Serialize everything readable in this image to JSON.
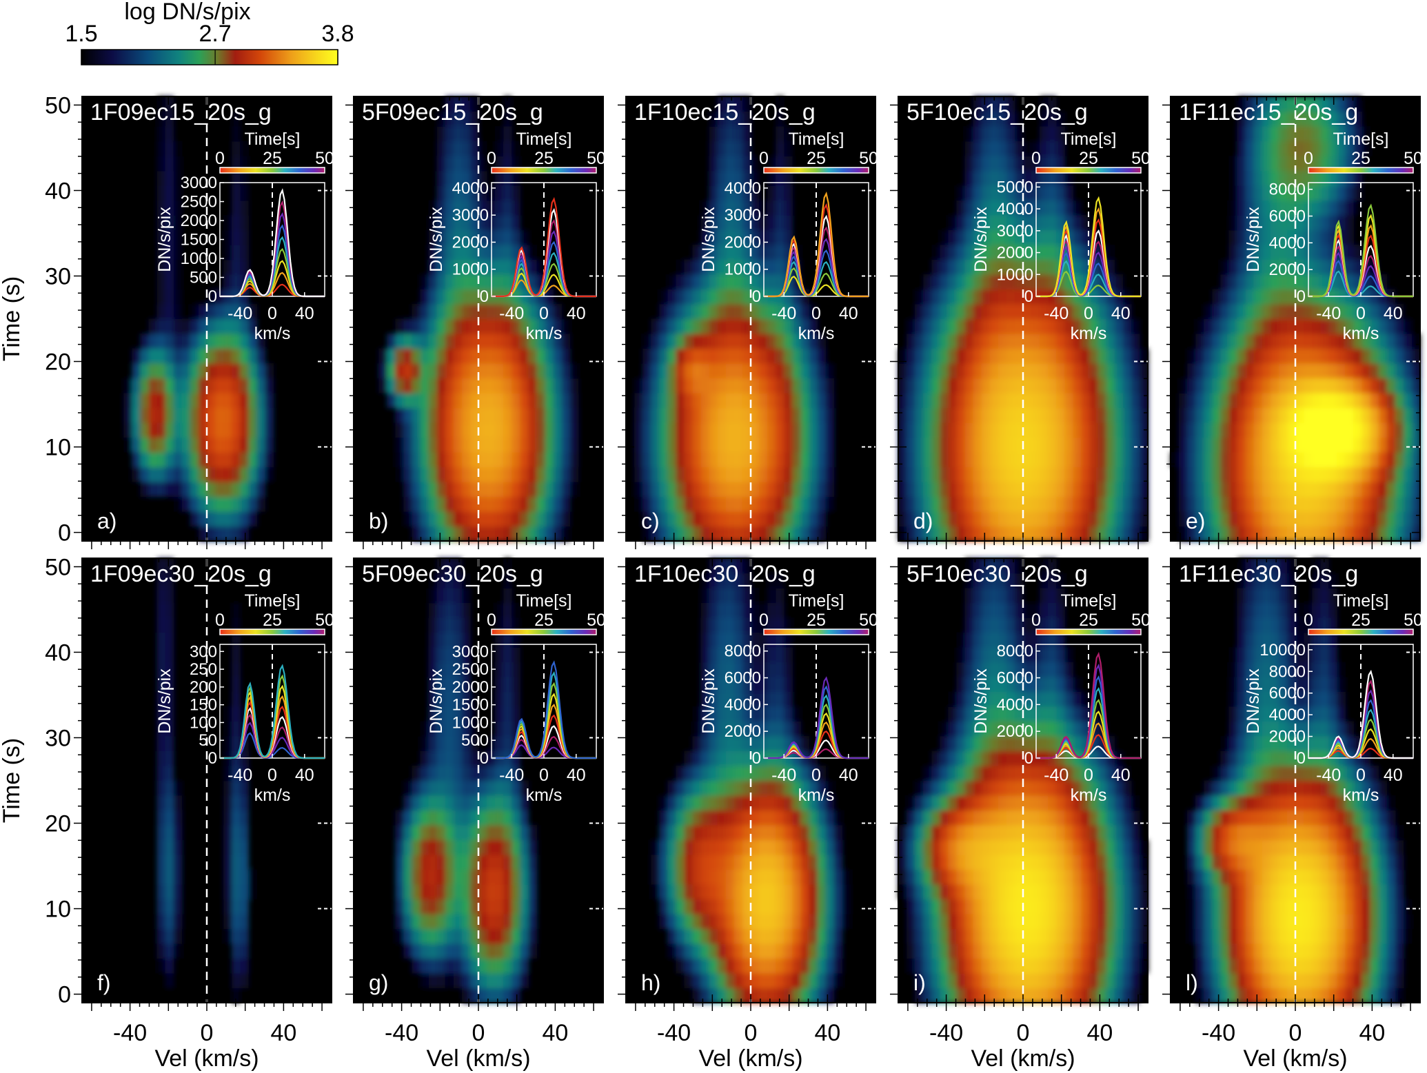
{
  "colorbar": {
    "title": "log DN/s/pix",
    "tick_labels": [
      "1.5",
      "2.7",
      "3.8"
    ],
    "tick_values": [
      1.5,
      2.7,
      3.8
    ],
    "range": [
      1.5,
      3.8
    ]
  },
  "axes_common": {
    "xlabel": "Vel (km/s)",
    "ylabel": "Time (s)",
    "xticks": [
      -40,
      0,
      40
    ],
    "yticks": [
      0,
      10,
      20,
      30,
      40,
      50
    ],
    "xlim": [
      -65,
      65
    ],
    "ylim": [
      -1,
      51
    ]
  },
  "inset_common": {
    "time_label": "Time[s]",
    "time_ticks": [
      "0",
      "25",
      "50"
    ],
    "ylabel": "DN/s/pix",
    "xlabel": "km/s",
    "xticks": [
      "-40",
      "0",
      "40"
    ]
  },
  "chart_data": [
    {
      "type": "heatmap",
      "title": "1F09ec15_20s_g",
      "panel_label": "a)",
      "xlabel": "Vel (km/s)",
      "ylabel": "Time (s)",
      "xlim": [
        -65,
        65
      ],
      "ylim": [
        -1,
        51
      ],
      "colorbar_range": [
        1.5,
        3.8
      ],
      "blobs": [
        {
          "v": -27,
          "t": 14,
          "sv": 6,
          "st": 4,
          "a": 2.95
        },
        {
          "v": 8,
          "t": 13,
          "sv": 10,
          "st": 5.5,
          "a": 3.2
        },
        {
          "v": -20,
          "t": 36,
          "sv": 5,
          "st": 18,
          "a": 1.8
        },
        {
          "v": 16,
          "t": 30,
          "sv": 5,
          "st": 18,
          "a": 1.8
        }
      ],
      "inset": {
        "ylim": [
          0,
          3000
        ],
        "yticks": [
          0,
          500,
          1000,
          1500,
          2000,
          2500,
          3000
        ],
        "peak_left": 700,
        "peak_right": 2800
      }
    },
    {
      "type": "heatmap",
      "title": "5F09ec15_20s_g",
      "panel_label": "b)",
      "xlabel": "Vel (km/s)",
      "ylabel": "Time (s)",
      "xlim": [
        -65,
        65
      ],
      "ylim": [
        -1,
        51
      ],
      "colorbar_range": [
        1.5,
        3.8
      ],
      "blobs": [
        {
          "v": -38,
          "t": 19,
          "sv": 5,
          "st": 2,
          "a": 3.0
        },
        {
          "v": 5,
          "t": 12,
          "sv": 16,
          "st": 8,
          "a": 3.45
        },
        {
          "v": -10,
          "t": 32,
          "sv": 8,
          "st": 14,
          "a": 2.2
        },
        {
          "v": 15,
          "t": 30,
          "sv": 5,
          "st": 16,
          "a": 1.9
        }
      ],
      "inset": {
        "ylim": [
          0,
          4200
        ],
        "yticks": [
          0,
          1000,
          2000,
          3000,
          4000
        ],
        "peak_left": 1800,
        "peak_right": 3600
      }
    },
    {
      "type": "heatmap",
      "title": "1F10ec15_20s_g",
      "panel_label": "c)",
      "xlabel": "Vel (km/s)",
      "ylabel": "Time (s)",
      "xlim": [
        -65,
        65
      ],
      "ylim": [
        -1,
        51
      ],
      "colorbar_range": [
        1.5,
        3.8
      ],
      "blobs": [
        {
          "v": -8,
          "t": 11,
          "sv": 18,
          "st": 8,
          "a": 3.45
        },
        {
          "v": -30,
          "t": 19,
          "sv": 6,
          "st": 2,
          "a": 3.0
        },
        {
          "v": -10,
          "t": 32,
          "sv": 8,
          "st": 14,
          "a": 2.2
        },
        {
          "v": 16,
          "t": 30,
          "sv": 5,
          "st": 16,
          "a": 1.9
        }
      ],
      "inset": {
        "ylim": [
          0,
          4200
        ],
        "yticks": [
          0,
          1000,
          2000,
          3000,
          4000
        ],
        "peak_left": 2200,
        "peak_right": 3800
      }
    },
    {
      "type": "heatmap",
      "title": "5F10ec15_20s_g",
      "panel_label": "d)",
      "xlabel": "Vel (km/s)",
      "ylabel": "Time (s)",
      "xlim": [
        -65,
        65
      ],
      "ylim": [
        -1,
        51
      ],
      "colorbar_range": [
        1.5,
        3.8
      ],
      "blobs": [
        {
          "v": 0,
          "t": 10,
          "sv": 22,
          "st": 10,
          "a": 3.6
        },
        {
          "v": -15,
          "t": 32,
          "sv": 9,
          "st": 14,
          "a": 2.25
        },
        {
          "v": 15,
          "t": 32,
          "sv": 6,
          "st": 14,
          "a": 2.0
        }
      ],
      "inset": {
        "ylim": [
          0,
          5200
        ],
        "yticks": [
          0,
          1000,
          2000,
          3000,
          4000,
          5000
        ],
        "peak_left": 3400,
        "peak_right": 4500
      }
    },
    {
      "type": "heatmap",
      "title": "1F11ec15_20s_g",
      "panel_label": "e)",
      "xlabel": "Vel (km/s)",
      "ylabel": "Time (s)",
      "xlim": [
        -65,
        65
      ],
      "ylim": [
        -1,
        51
      ],
      "colorbar_range": [
        1.5,
        3.8
      ],
      "blobs": [
        {
          "v": 5,
          "t": 8,
          "sv": 22,
          "st": 9,
          "a": 3.6
        },
        {
          "v": 20,
          "t": 12,
          "sv": 14,
          "st": 3,
          "a": 3.8
        },
        {
          "v": 5,
          "t": 45,
          "sv": 14,
          "st": 5,
          "a": 2.7
        },
        {
          "v": -10,
          "t": 32,
          "sv": 12,
          "st": 14,
          "a": 2.25
        }
      ],
      "inset": {
        "ylim": [
          0,
          8500
        ],
        "yticks": [
          0,
          2000,
          4000,
          6000,
          8000
        ],
        "peak_left": 5600,
        "peak_right": 6800
      }
    },
    {
      "type": "heatmap",
      "title": "1F09ec30_20s_g",
      "panel_label": "f)",
      "xlabel": "Vel (km/s)",
      "ylabel": "Time (s)",
      "xlim": [
        -65,
        65
      ],
      "ylim": [
        -1,
        51
      ],
      "colorbar_range": [
        1.5,
        3.8
      ],
      "blobs": [
        {
          "v": -20,
          "t": 14,
          "sv": 4,
          "st": 8,
          "a": 2.15
        },
        {
          "v": 17,
          "t": 13,
          "sv": 4,
          "st": 8,
          "a": 2.15
        },
        {
          "v": -22,
          "t": 40,
          "sv": 4,
          "st": 14,
          "a": 1.85
        },
        {
          "v": 15,
          "t": 32,
          "sv": 4,
          "st": 14,
          "a": 1.75
        }
      ],
      "inset": {
        "ylim": [
          0,
          320
        ],
        "yticks": [
          0,
          50,
          100,
          150,
          200,
          250,
          300
        ],
        "peak_left": 210,
        "peak_right": 260
      }
    },
    {
      "type": "heatmap",
      "title": "5F09ec30_20s_g",
      "panel_label": "g)",
      "xlabel": "Vel (km/s)",
      "ylabel": "Time (s)",
      "xlim": [
        -65,
        65
      ],
      "ylim": [
        -1,
        51
      ],
      "colorbar_range": [
        1.5,
        3.8
      ],
      "blobs": [
        {
          "v": -25,
          "t": 14,
          "sv": 8,
          "st": 5,
          "a": 2.95
        },
        {
          "v": 8,
          "t": 12,
          "sv": 9,
          "st": 6,
          "a": 3.05
        },
        {
          "v": -15,
          "t": 32,
          "sv": 8,
          "st": 14,
          "a": 2.1
        },
        {
          "v": 15,
          "t": 32,
          "sv": 5,
          "st": 14,
          "a": 1.9
        }
      ],
      "inset": {
        "ylim": [
          0,
          3200
        ],
        "yticks": [
          0,
          500,
          1000,
          1500,
          2000,
          2500,
          3000
        ],
        "peak_left": 1100,
        "peak_right": 2700
      }
    },
    {
      "type": "heatmap",
      "title": "1F10ec30_20s_g",
      "panel_label": "h)",
      "xlabel": "Vel (km/s)",
      "ylabel": "Time (s)",
      "xlim": [
        -65,
        65
      ],
      "ylim": [
        -1,
        51
      ],
      "colorbar_range": [
        1.5,
        3.8
      ],
      "blobs": [
        {
          "v": 8,
          "t": 11,
          "sv": 14,
          "st": 7,
          "a": 3.55
        },
        {
          "v": -25,
          "t": 15,
          "sv": 10,
          "st": 5,
          "a": 3.0
        },
        {
          "v": -12,
          "t": 33,
          "sv": 9,
          "st": 14,
          "a": 2.2
        },
        {
          "v": 14,
          "t": 30,
          "sv": 6,
          "st": 14,
          "a": 1.95
        }
      ],
      "inset": {
        "ylim": [
          0,
          8500
        ],
        "yticks": [
          0,
          2000,
          4000,
          6000,
          8000
        ],
        "peak_left": 1200,
        "peak_right": 6000
      }
    },
    {
      "type": "heatmap",
      "title": "5F10ec30_20s_g",
      "panel_label": "i)",
      "xlabel": "Vel (km/s)",
      "ylabel": "Time (s)",
      "xlim": [
        -65,
        65
      ],
      "ylim": [
        -1,
        51
      ],
      "colorbar_range": [
        1.5,
        3.8
      ],
      "blobs": [
        {
          "v": 2,
          "t": 10,
          "sv": 20,
          "st": 9,
          "a": 3.7
        },
        {
          "v": -30,
          "t": 17,
          "sv": 12,
          "st": 3,
          "a": 3.2
        },
        {
          "v": -15,
          "t": 33,
          "sv": 10,
          "st": 14,
          "a": 2.25
        },
        {
          "v": 15,
          "t": 32,
          "sv": 6,
          "st": 14,
          "a": 2.0
        }
      ],
      "inset": {
        "ylim": [
          0,
          8500
        ],
        "yticks": [
          0,
          2000,
          4000,
          6000,
          8000
        ],
        "peak_left": 1600,
        "peak_right": 7800
      }
    },
    {
      "type": "heatmap",
      "title": "1F11ec30_20s_g",
      "panel_label": "l)",
      "xlabel": "Vel (km/s)",
      "ylabel": "Time (s)",
      "xlim": [
        -65,
        65
      ],
      "ylim": [
        -1,
        51
      ],
      "colorbar_range": [
        1.5,
        3.8
      ],
      "blobs": [
        {
          "v": 2,
          "t": 9,
          "sv": 18,
          "st": 8,
          "a": 3.7
        },
        {
          "v": -30,
          "t": 18,
          "sv": 10,
          "st": 2.5,
          "a": 3.15
        },
        {
          "v": -15,
          "t": 33,
          "sv": 10,
          "st": 14,
          "a": 2.25
        },
        {
          "v": 15,
          "t": 32,
          "sv": 6,
          "st": 14,
          "a": 2.0
        }
      ],
      "inset": {
        "ylim": [
          0,
          10500
        ],
        "yticks": [
          0,
          2000,
          4000,
          6000,
          8000,
          10000
        ],
        "peak_left": 2000,
        "peak_right": 8000
      }
    }
  ]
}
